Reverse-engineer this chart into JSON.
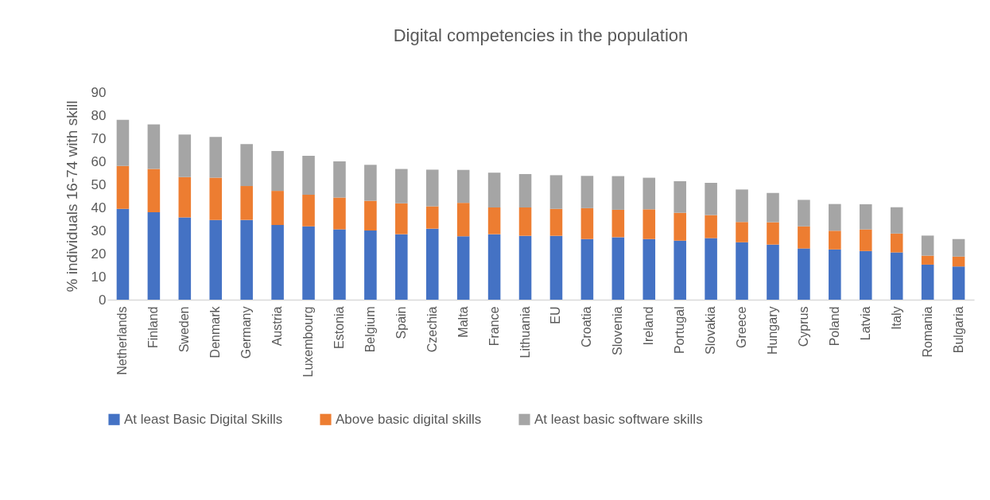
{
  "chart_data": {
    "type": "bar",
    "stacked": true,
    "title": "Digital competencies in the population",
    "ylabel": "% individuals 16-74 with skill",
    "categories": [
      "Netherlands",
      "Finland",
      "Sweden",
      "Denmark",
      "Germany",
      "Austria",
      "Luxembourg",
      "Estonia",
      "Belgium",
      "Spain",
      "Czechia",
      "Malta",
      "France",
      "Lithuania",
      "EU",
      "Croatia",
      "Slovenia",
      "Ireland",
      "Portugal",
      "Slovakia",
      "Greece",
      "Hungary",
      "Cyprus",
      "Poland",
      "Latvia",
      "Italy",
      "Romania",
      "Bulgaria"
    ],
    "series": [
      {
        "name": "At least Basic Digital Skills",
        "color": "#4472c4",
        "values": [
          39.4,
          37.9,
          35.7,
          34.6,
          34.6,
          32.4,
          31.8,
          30.5,
          30.0,
          28.4,
          30.8,
          27.5,
          28.4,
          27.7,
          27.7,
          26.3,
          27.1,
          26.3,
          25.6,
          26.7,
          24.9,
          23.9,
          22.2,
          21.8,
          21.1,
          20.5,
          15.2,
          14.4
        ]
      },
      {
        "name": "Above basic digital skills",
        "color": "#ed7d31",
        "values": [
          18.6,
          18.8,
          17.5,
          18.3,
          14.7,
          14.8,
          13.7,
          13.8,
          12.9,
          13.4,
          9.7,
          14.5,
          11.6,
          12.3,
          11.7,
          13.4,
          11.9,
          12.9,
          12.1,
          10.0,
          8.8,
          9.7,
          9.6,
          8.1,
          9.4,
          8.2,
          3.9,
          4.3
        ]
      },
      {
        "name": "At least basic software skills",
        "color": "#a5a5a5",
        "values": [
          20.0,
          19.3,
          18.4,
          17.7,
          18.2,
          17.3,
          16.9,
          15.7,
          15.6,
          14.9,
          15.9,
          14.3,
          15.1,
          14.5,
          14.6,
          14.0,
          14.6,
          13.7,
          13.7,
          14.0,
          14.1,
          12.7,
          11.5,
          11.6,
          10.9,
          11.4,
          8.7,
          7.6
        ]
      }
    ],
    "ylim": [
      0,
      90
    ],
    "yticks": [
      0,
      10,
      20,
      30,
      40,
      50,
      60,
      70,
      80,
      90
    ],
    "grid": false,
    "legend": "bottom"
  }
}
